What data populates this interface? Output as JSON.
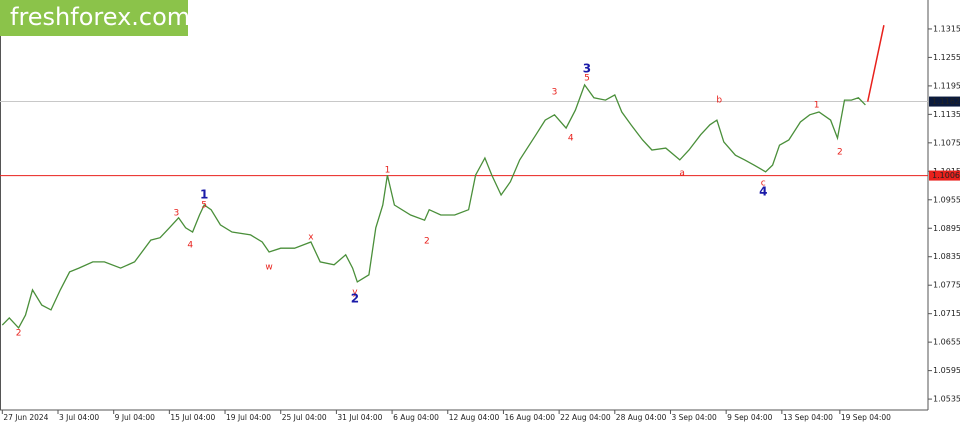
{
  "chart_data": {
    "type": "line",
    "watermark": "freshforex.com",
    "xlim": [
      0,
      400
    ],
    "ylim": [
      1.0512,
      1.1376
    ],
    "yticks": [
      1.1315,
      1.1255,
      1.1195,
      1.1135,
      1.1075,
      1.1015,
      1.0955,
      1.0895,
      1.0835,
      1.0775,
      1.0715,
      1.0655,
      1.0595,
      1.0535
    ],
    "xticks": [
      {
        "value": 1,
        "label": "27 Jun 2024"
      },
      {
        "value": 25,
        "label": "3 Jul 04:00"
      },
      {
        "value": 49,
        "label": "9 Jul 04:00"
      },
      {
        "value": 73,
        "label": "15 Jul 04:00"
      },
      {
        "value": 97,
        "label": "19 Jul 04:00"
      },
      {
        "value": 121,
        "label": "25 Jul 04:00"
      },
      {
        "value": 145,
        "label": "31 Jul 04:00"
      },
      {
        "value": 169,
        "label": "6 Aug 04:00"
      },
      {
        "value": 193,
        "label": "12 Aug 04:00"
      },
      {
        "value": 217,
        "label": "16 Aug 04:00"
      },
      {
        "value": 241,
        "label": "22 Aug 04:00"
      },
      {
        "value": 265,
        "label": "28 Aug 04:00"
      },
      {
        "value": 289,
        "label": "3 Sep 04:00"
      },
      {
        "value": 313,
        "label": "9 Sep 04:00"
      },
      {
        "value": 337,
        "label": "13 Sep 04:00"
      },
      {
        "value": 362,
        "label": "19 Sep 04:00"
      }
    ],
    "series": [
      {
        "color": "#4a8f3a",
        "x": [
          1,
          4,
          8,
          11,
          14,
          18,
          22,
          26,
          30,
          34,
          40,
          45,
          52,
          58,
          65,
          69,
          73,
          77,
          80,
          83,
          86,
          88,
          91,
          95,
          100,
          108,
          113,
          116,
          121,
          127,
          134,
          138,
          144,
          149,
          152,
          154,
          159,
          162,
          165,
          167,
          170,
          177,
          183,
          185,
          190,
          196,
          202,
          205,
          209,
          212,
          216,
          220,
          224,
          231,
          235,
          239,
          244,
          248,
          252,
          256,
          261,
          265,
          268,
          272,
          277,
          281,
          287,
          293,
          297,
          302,
          306,
          309,
          312,
          317,
          321,
          325,
          330,
          333,
          336,
          340,
          345,
          349,
          353,
          358,
          361,
          364,
          367,
          370,
          373
        ],
        "values": [
          1.0691,
          1.0706,
          1.0685,
          1.0712,
          1.0765,
          1.0733,
          1.0723,
          1.0765,
          1.0803,
          1.0811,
          1.0824,
          1.0824,
          1.0811,
          1.0824,
          1.087,
          1.0875,
          1.0896,
          1.0917,
          1.0896,
          1.0887,
          1.0923,
          1.0944,
          1.0934,
          1.0902,
          1.0887,
          1.0881,
          1.0866,
          1.0845,
          1.0853,
          1.0853,
          1.0866,
          1.0824,
          1.0818,
          1.0839,
          1.0811,
          1.0782,
          1.0797,
          1.0896,
          1.0944,
          1.1007,
          1.0944,
          1.0923,
          1.0912,
          1.0934,
          1.0923,
          1.0923,
          1.0934,
          1.1007,
          1.1043,
          1.1007,
          1.0965,
          1.0993,
          1.1039,
          1.1092,
          1.1123,
          1.1134,
          1.1106,
          1.1144,
          1.1197,
          1.117,
          1.1165,
          1.1176,
          1.114,
          1.1113,
          1.1081,
          1.106,
          1.1064,
          1.1039,
          1.106,
          1.1092,
          1.1113,
          1.1123,
          1.1077,
          1.1049,
          1.1039,
          1.1028,
          1.1014,
          1.1028,
          1.107,
          1.1081,
          1.1119,
          1.1134,
          1.114,
          1.1123,
          1.1085,
          1.1165,
          1.1165,
          1.117,
          1.1155
        ]
      },
      {
        "color": "#e8211c",
        "x": [
          374,
          381
        ],
        "values": [
          1.1162,
          1.1323
        ]
      }
    ],
    "levels": [
      {
        "value": 1.1162,
        "color": "#c8c8c8",
        "box": "#0b1a3c"
      },
      {
        "value": 1.1006,
        "color": "#e8211c",
        "box": "#e8211c"
      }
    ],
    "annotations": [
      {
        "text": "2",
        "x": 8,
        "y": 1.0674,
        "color": "#e8211c"
      },
      {
        "text": "1",
        "x": 88,
        "y": 1.0965,
        "color": "#1a1aa8"
      },
      {
        "text": "5",
        "x": 88,
        "y": 1.0944,
        "color": "#e8211c"
      },
      {
        "text": "3",
        "x": 76,
        "y": 1.0927,
        "color": "#e8211c"
      },
      {
        "text": "4",
        "x": 82,
        "y": 1.086,
        "color": "#e8211c"
      },
      {
        "text": "w",
        "x": 116,
        "y": 1.0813,
        "color": "#e8211c"
      },
      {
        "text": "x",
        "x": 134,
        "y": 1.0877,
        "color": "#e8211c"
      },
      {
        "text": "y",
        "x": 153,
        "y": 1.0761,
        "color": "#e8211c"
      },
      {
        "text": "2",
        "x": 153,
        "y": 1.0746,
        "color": "#1a1aa8"
      },
      {
        "text": "1",
        "x": 167,
        "y": 1.1018,
        "color": "#e8211c"
      },
      {
        "text": "2",
        "x": 184,
        "y": 1.0868,
        "color": "#e8211c"
      },
      {
        "text": "3",
        "x": 239,
        "y": 1.1182,
        "color": "#e8211c"
      },
      {
        "text": "4",
        "x": 246,
        "y": 1.1085,
        "color": "#e8211c"
      },
      {
        "text": "3",
        "x": 253,
        "y": 1.1231,
        "color": "#1a1aa8"
      },
      {
        "text": "5",
        "x": 253,
        "y": 1.1212,
        "color": "#e8211c"
      },
      {
        "text": "a",
        "x": 294,
        "y": 1.1011,
        "color": "#e8211c"
      },
      {
        "text": "b",
        "x": 310,
        "y": 1.1165,
        "color": "#e8211c"
      },
      {
        "text": "c",
        "x": 329,
        "y": 1.099,
        "color": "#e8211c"
      },
      {
        "text": "4",
        "x": 329,
        "y": 1.0971,
        "color": "#1a1aa8"
      },
      {
        "text": "1",
        "x": 352,
        "y": 1.1155,
        "color": "#e8211c"
      },
      {
        "text": "2",
        "x": 362,
        "y": 1.1056,
        "color": "#e8211c"
      }
    ]
  }
}
